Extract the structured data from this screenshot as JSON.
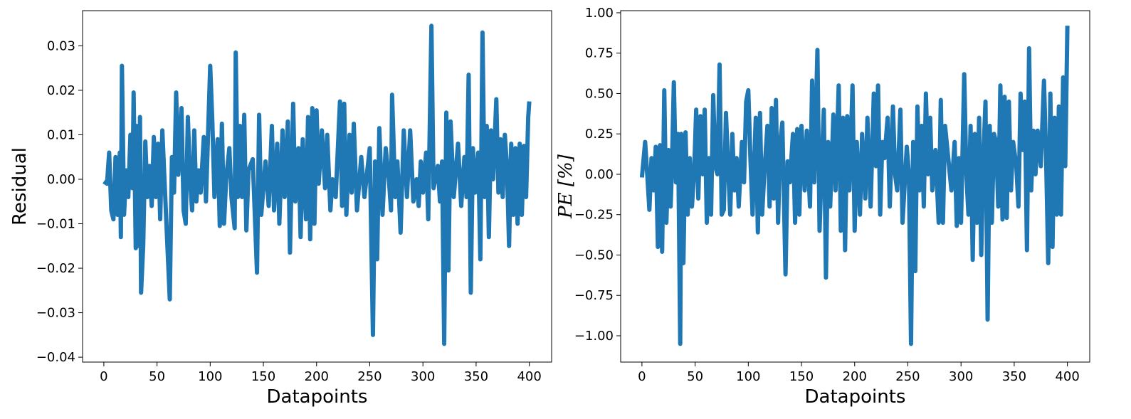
{
  "chart_data": [
    {
      "type": "line",
      "xlabel": "Datapoints",
      "ylabel": "Residual",
      "color": "#1f77b4",
      "x": [
        0,
        3,
        5,
        7,
        9,
        11,
        13,
        15,
        16,
        17,
        19,
        21,
        23,
        25,
        27,
        28,
        30,
        31,
        33,
        34,
        35,
        37,
        39,
        41,
        43,
        45,
        47,
        49,
        51,
        53,
        55,
        57,
        62,
        64,
        66,
        68,
        70,
        73,
        75,
        77,
        79,
        81,
        83,
        85,
        87,
        89,
        91,
        94,
        96,
        100,
        102,
        104,
        107,
        109,
        111,
        113,
        115,
        118,
        120,
        123,
        124,
        126,
        128,
        130,
        132,
        134,
        136,
        140,
        144,
        146,
        148,
        152,
        155,
        158,
        160,
        163,
        165,
        168,
        170,
        173,
        175,
        178,
        180,
        183,
        185,
        187,
        190,
        192,
        194,
        196,
        198,
        200,
        202,
        205,
        208,
        210,
        213,
        215,
        218,
        222,
        224,
        226,
        228,
        231,
        233,
        235,
        238,
        242,
        245,
        250,
        253,
        255,
        257,
        259,
        262,
        265,
        268,
        270,
        271,
        274,
        276,
        279,
        282,
        285,
        288,
        291,
        294,
        296,
        298,
        300,
        303,
        305,
        308,
        310,
        314,
        316,
        318,
        320,
        322,
        324,
        326,
        329,
        333,
        336,
        339,
        341,
        343,
        345,
        347,
        349,
        352,
        354,
        356,
        358,
        360,
        362,
        364,
        366,
        369,
        371,
        373,
        375,
        377,
        379,
        381,
        383,
        385,
        387,
        389,
        391,
        393,
        395,
        397,
        399,
        400
      ],
      "values": [
        -0.0005,
        -0.001,
        0.006,
        -0.007,
        -0.009,
        0.005,
        -0.008,
        0.006,
        -0.013,
        0.0255,
        -0.008,
        0.002,
        -0.004,
        0.01,
        -0.002,
        0.0195,
        -0.0155,
        0.012,
        -0.015,
        0.014,
        -0.0255,
        -0.015,
        0.0085,
        -0.004,
        0.003,
        -0.006,
        0.0095,
        -0.004,
        0.008,
        -0.009,
        0.011,
        0.0,
        -0.027,
        0.005,
        -0.003,
        0.0195,
        0.001,
        0.016,
        -0.007,
        -0.01,
        0.014,
        0.0,
        -0.007,
        0.011,
        -0.005,
        0.002,
        -0.003,
        0.0095,
        -0.005,
        0.0255,
        0.013,
        -0.004,
        0.009,
        -0.0105,
        0.0125,
        -0.01,
        0.0,
        0.007,
        -0.004,
        -0.011,
        0.0285,
        -0.004,
        0.012,
        -0.004,
        0.0145,
        -0.0115,
        0.002,
        0.0045,
        -0.021,
        0.0145,
        -0.008,
        0.004,
        -0.006,
        0.012,
        -0.007,
        0.008,
        -0.01,
        0.011,
        -0.004,
        0.013,
        -0.0165,
        0.017,
        -0.005,
        0.007,
        -0.013,
        0.009,
        -0.009,
        0.014,
        -0.0135,
        0.016,
        -0.01,
        0.0155,
        -0.001,
        0.011,
        -0.002,
        0.01,
        -0.007,
        0.0,
        -0.004,
        0.0175,
        -0.006,
        0.017,
        -0.008,
        0.01,
        -0.003,
        0.0125,
        -0.007,
        0.005,
        -0.004,
        0.007,
        -0.035,
        0.004,
        -0.018,
        0.0115,
        -0.008,
        0.007,
        0.0,
        -0.007,
        0.019,
        -0.004,
        0.004,
        -0.012,
        0.011,
        -0.004,
        0.011,
        -0.005,
        0.0,
        -0.006,
        0.004,
        -0.003,
        0.006,
        -0.009,
        0.0345,
        -0.002,
        0.003,
        -0.005,
        0.004,
        -0.037,
        0.015,
        -0.0205,
        0.013,
        -0.004,
        0.008,
        -0.006,
        0.005,
        -0.004,
        0.0235,
        -0.0255,
        0.007,
        -0.003,
        0.006,
        -0.018,
        0.033,
        -0.004,
        0.012,
        -0.013,
        0.011,
        0.0,
        0.018,
        -0.003,
        0.009,
        -0.004,
        0.01,
        0.003,
        -0.015,
        0.008,
        -0.008,
        0.007,
        -0.01,
        0.008,
        -0.008,
        0.0075,
        -0.004,
        0.014,
        0.0175
      ],
      "xlim": [
        -20,
        421
      ],
      "ylim": [
        -0.0411,
        0.0379
      ],
      "xticks": [
        0,
        50,
        100,
        150,
        200,
        250,
        300,
        350,
        400
      ],
      "yticks": [
        {
          "value": -0.04,
          "label": "−0.04"
        },
        {
          "value": -0.03,
          "label": "−0.03"
        },
        {
          "value": -0.02,
          "label": "−0.02"
        },
        {
          "value": -0.01,
          "label": "−0.01"
        },
        {
          "value": 0,
          "label": "0.00"
        },
        {
          "value": 0.01,
          "label": "0.01"
        },
        {
          "value": 0.02,
          "label": "0.02"
        },
        {
          "value": 0.03,
          "label": "0.03"
        }
      ]
    },
    {
      "type": "line",
      "xlabel": "Datapoints",
      "ylabel": "PE [%]",
      "color": "#1f77b4",
      "x": [
        0,
        3,
        5,
        7,
        9,
        11,
        13,
        15,
        17,
        19,
        21,
        23,
        25,
        27,
        28,
        30,
        32,
        34,
        36,
        37,
        39,
        41,
        43,
        45,
        47,
        49,
        51,
        53,
        55,
        57,
        59,
        61,
        63,
        65,
        67,
        69,
        71,
        73,
        75,
        77,
        79,
        81,
        83,
        85,
        87,
        89,
        91,
        94,
        96,
        98,
        100,
        102,
        104,
        107,
        109,
        111,
        113,
        115,
        118,
        120,
        122,
        124,
        126,
        128,
        130,
        132,
        135,
        137,
        139,
        142,
        144,
        146,
        148,
        150,
        153,
        155,
        158,
        160,
        162,
        165,
        167,
        169,
        171,
        173,
        175,
        177,
        180,
        182,
        185,
        187,
        189,
        191,
        193,
        195,
        198,
        200,
        202,
        205,
        207,
        210,
        212,
        215,
        218,
        220,
        222,
        224,
        226,
        228,
        231,
        233,
        236,
        238,
        240,
        243,
        245,
        249,
        251,
        253,
        255,
        257,
        259,
        261,
        263,
        265,
        267,
        269,
        271,
        273,
        276,
        279,
        281,
        283,
        285,
        288,
        291,
        294,
        296,
        298,
        300,
        303,
        305,
        307,
        309,
        311,
        313,
        315,
        317,
        319,
        321,
        323,
        325,
        327,
        329,
        331,
        333,
        335,
        337,
        339,
        341,
        343,
        345,
        347,
        349,
        352,
        354,
        356,
        358,
        360,
        362,
        364,
        366,
        368,
        370,
        372,
        375,
        378,
        380,
        382,
        384,
        386,
        388,
        390,
        392,
        394,
        396,
        398,
        400
      ],
      "values": [
        -0.02,
        0.2,
        0.0,
        -0.22,
        0.1,
        -0.1,
        0.17,
        -0.45,
        0.18,
        -0.48,
        0.52,
        -0.3,
        0.15,
        -0.2,
        0.0,
        0.57,
        -0.05,
        0.25,
        -1.05,
        0.25,
        -0.55,
        0.26,
        -0.25,
        0.1,
        -0.2,
        0.0,
        0.4,
        -0.15,
        0.36,
        0.0,
        0.4,
        -0.3,
        0.1,
        -0.25,
        0.49,
        0.05,
        0.0,
        0.68,
        -0.25,
        -0.22,
        0.38,
        0.05,
        -0.25,
        0.25,
        -0.1,
        0.1,
        -0.2,
        0.2,
        -0.05,
        0.45,
        0.52,
        0.1,
        -0.25,
        0.35,
        -0.36,
        0.38,
        -0.25,
        0.0,
        0.3,
        -0.2,
        0.41,
        -0.15,
        0.46,
        -0.3,
        0.2,
        0.32,
        -0.62,
        0.08,
        -0.05,
        0.25,
        -0.3,
        0.28,
        -0.25,
        0.3,
        -0.1,
        0.27,
        -0.2,
        0.58,
        -0.05,
        0.77,
        -0.35,
        0.05,
        0.4,
        -0.64,
        0.2,
        -0.2,
        0.37,
        -0.1,
        0.55,
        -0.35,
        0.35,
        -0.47,
        0.36,
        -0.1,
        0.55,
        -0.35,
        0.2,
        -0.25,
        0.25,
        -0.15,
        0.35,
        -0.2,
        0.5,
        0.05,
        0.55,
        -0.25,
        0.2,
        0.1,
        0.35,
        -0.2,
        0.42,
        0.0,
        -0.1,
        0.4,
        -0.3,
        0.17,
        0.0,
        -1.05,
        0.2,
        -0.6,
        0.42,
        -0.1,
        0.3,
        -0.2,
        0.5,
        0.0,
        0.35,
        -0.1,
        0.15,
        -0.3,
        0.46,
        -0.3,
        0.3,
        0.1,
        -0.1,
        0.2,
        -0.32,
        0.1,
        -0.3,
        0.62,
        0.0,
        -0.25,
        0.3,
        -0.53,
        0.25,
        -0.3,
        0.35,
        -0.5,
        0.1,
        0.45,
        -0.9,
        0.3,
        -0.3,
        0.25,
        0.2,
        -0.2,
        0.55,
        -0.28,
        0.48,
        -0.27,
        0.45,
        -0.1,
        0.2,
        0.05,
        -0.2,
        0.5,
        0.15,
        0.45,
        -0.47,
        0.78,
        -0.1,
        0.27,
        0.0,
        0.27,
        0.05,
        0.58,
        0.1,
        -0.55,
        0.5,
        -0.45,
        0.35,
        -0.25,
        0.42,
        -0.25,
        0.6,
        0.05,
        0.92
      ],
      "xlim": [
        -20,
        421
      ],
      "ylim": [
        -1.163,
        1.013
      ],
      "xticks": [
        0,
        50,
        100,
        150,
        200,
        250,
        300,
        350,
        400
      ],
      "yticks": [
        {
          "value": -1,
          "label": "−1.00"
        },
        {
          "value": -0.75,
          "label": "−0.75"
        },
        {
          "value": -0.5,
          "label": "−0.50"
        },
        {
          "value": -0.25,
          "label": "−0.25"
        },
        {
          "value": 0,
          "label": "0.00"
        },
        {
          "value": 0.25,
          "label": "0.25"
        },
        {
          "value": 0.5,
          "label": "0.50"
        },
        {
          "value": 0.75,
          "label": "0.75"
        },
        {
          "value": 1,
          "label": "1.00"
        }
      ]
    }
  ]
}
